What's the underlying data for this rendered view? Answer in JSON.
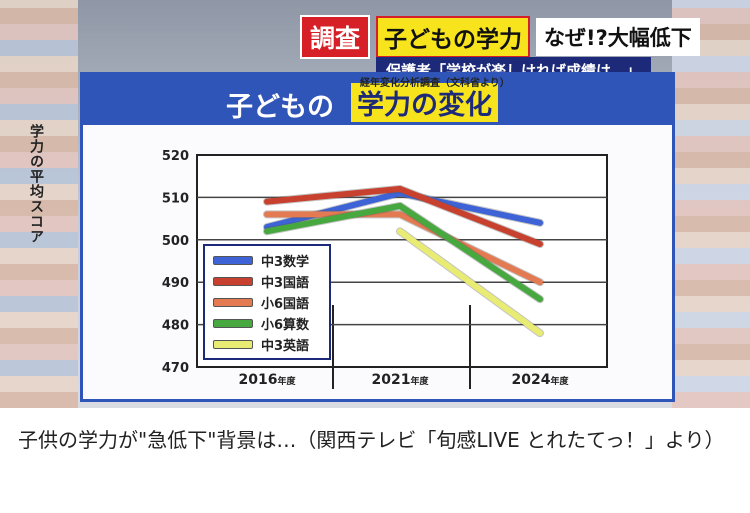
{
  "banner": {
    "tag": "調査",
    "highlight": "子どもの学力",
    "rest": "なぜ!?大幅低下",
    "subtitle": "保護者「学校が楽しければ成績は…」"
  },
  "board_title": {
    "plain": "子どもの",
    "highlight": "学力の変化"
  },
  "source_note": "経年変化分析調査（文科省より）",
  "caption": "子供の学力が\"急低下\"背景は…（関西テレビ「旬感LIVE とれたてっ！」より）",
  "chart_data": {
    "type": "line",
    "x": [
      "2016年度",
      "2021年度",
      "2024年度"
    ],
    "ylabel": "学力の平均スコア",
    "ylim": [
      470,
      520
    ],
    "yticks": [
      470,
      480,
      490,
      500,
      510,
      520
    ],
    "grid": true,
    "legend_position": "bottom-left",
    "series": [
      {
        "name": "中3数学",
        "color": "#3d63d6",
        "values": [
          503,
          511,
          504
        ]
      },
      {
        "name": "中3国語",
        "color": "#c8412f",
        "values": [
          509,
          512,
          499
        ]
      },
      {
        "name": "小6国語",
        "color": "#e47a52",
        "values": [
          506,
          506,
          490
        ]
      },
      {
        "name": "小6算数",
        "color": "#46a83f",
        "values": [
          502,
          508,
          486
        ]
      },
      {
        "name": "中3英語",
        "color": "#e9ec72",
        "values": [
          null,
          502,
          478
        ]
      }
    ]
  }
}
